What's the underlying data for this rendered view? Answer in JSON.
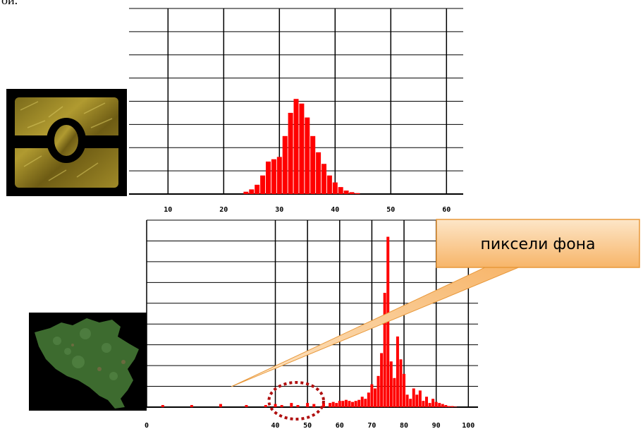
{
  "heading_fragment": "ой.",
  "colors": {
    "bars": "#ff0000",
    "grid": "#000000",
    "callout_fill_top": "#fde6c8",
    "callout_fill_bottom": "#f7b569",
    "callout_border": "#e8983a",
    "ellipse": "#b01010"
  },
  "images": {
    "top": "gold-chip-thumbnail",
    "bottom": "belgium-satellite-thumbnail"
  },
  "annotation": {
    "label": "пиксели фона",
    "ellipse_x_range": [
      38,
      55
    ]
  },
  "chart_data": [
    {
      "type": "bar",
      "title": "",
      "xlabel": "",
      "ylabel": "",
      "xlim": [
        3,
        63
      ],
      "ylim": [
        0,
        8
      ],
      "grid": true,
      "xticks": [
        "10",
        "20",
        "30",
        "40",
        "50",
        "60"
      ],
      "xtick_values": [
        10,
        20,
        30,
        40,
        50,
        60
      ],
      "x": [
        24,
        25,
        26,
        27,
        28,
        29,
        30,
        31,
        32,
        33,
        34,
        35,
        36,
        37,
        38,
        39,
        40,
        41,
        42,
        43,
        44
      ],
      "values": [
        0.1,
        0.2,
        0.4,
        0.8,
        1.4,
        1.5,
        1.6,
        2.5,
        3.5,
        4.1,
        3.9,
        3.3,
        2.5,
        1.8,
        1.3,
        0.8,
        0.5,
        0.3,
        0.15,
        0.08,
        0.04
      ]
    },
    {
      "type": "bar",
      "title": "",
      "xlabel": "",
      "ylabel": "",
      "xlim": [
        0,
        103
      ],
      "ylim": [
        0,
        9
      ],
      "grid": true,
      "xticks": [
        "0",
        "40",
        "50",
        "60",
        "70",
        "80",
        "90",
        "100"
      ],
      "xtick_values": [
        0,
        40,
        50,
        60,
        70,
        80,
        90,
        100
      ],
      "x": [
        5,
        14,
        23,
        31,
        37,
        40,
        42,
        45,
        47,
        50,
        52,
        55,
        57,
        58,
        59,
        60,
        61,
        62,
        63,
        64,
        65,
        66,
        67,
        68,
        69,
        70,
        71,
        72,
        73,
        74,
        75,
        76,
        77,
        78,
        79,
        80,
        81,
        82,
        83,
        84,
        85,
        86,
        87,
        88,
        89,
        90,
        91,
        92,
        93,
        94,
        95,
        96
      ],
      "values": [
        0.1,
        0.1,
        0.15,
        0.1,
        0.1,
        0.15,
        0.1,
        0.2,
        0.1,
        0.2,
        0.15,
        0.2,
        0.2,
        0.25,
        0.2,
        0.3,
        0.3,
        0.35,
        0.3,
        0.25,
        0.3,
        0.35,
        0.5,
        0.4,
        0.7,
        1.1,
        0.9,
        1.5,
        2.6,
        5.5,
        8.2,
        2.2,
        1.4,
        3.4,
        2.3,
        1.6,
        0.6,
        0.4,
        0.9,
        0.6,
        0.8,
        0.3,
        0.5,
        0.2,
        0.4,
        0.25,
        0.2,
        0.15,
        0.1,
        0.05,
        0.05,
        0.02
      ]
    }
  ]
}
